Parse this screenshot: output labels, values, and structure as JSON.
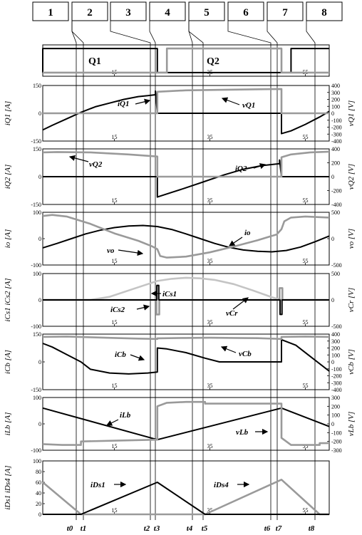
{
  "colors": {
    "dark": "#000000",
    "gray": "#9a9a9a",
    "light": "#c4c4c4"
  },
  "intervals": [
    "1",
    "2",
    "3",
    "4",
    "5",
    "6",
    "7",
    "8"
  ],
  "time_markers": [
    "t0",
    "t1",
    "t2",
    "t3",
    "t4",
    "t5",
    "t6",
    "t7",
    "t8"
  ],
  "chart_data": [
    {
      "type": "line",
      "id": "gate",
      "labels": [
        "Q1",
        "Q2"
      ],
      "x_ticks": [
        "15",
        "35",
        "55"
      ],
      "series": [
        {
          "name": "Q1",
          "color": "dark",
          "x": [
            0,
            0,
            24,
            24,
            31,
            31,
            52,
            52,
            60
          ],
          "y": [
            0,
            1,
            1,
            0,
            0,
            0,
            0,
            1,
            1
          ]
        },
        {
          "name": "Q2",
          "color": "gray",
          "x": [
            0,
            26,
            26,
            50,
            50,
            60
          ],
          "y": [
            0,
            0,
            1,
            1,
            0,
            0
          ]
        }
      ]
    },
    {
      "type": "line",
      "id": "iQ1",
      "ylabel_left": "iQ1 [A]",
      "ylabel_right": "vQ1 [V]",
      "left_ticks": [
        "150",
        "0",
        "-150"
      ],
      "right_ticks": [
        "400",
        "300",
        "200",
        "100",
        "0",
        "-100",
        "-200",
        "-300",
        "-400"
      ],
      "x_ticks": [
        "15",
        "35",
        "55"
      ],
      "annotations": [
        "iQ1",
        "vQ1"
      ],
      "series": [
        {
          "name": "iQ1",
          "color": "dark",
          "x": [
            0,
            2,
            5,
            8,
            11,
            14,
            17,
            20,
            22,
            23.6,
            23.6,
            24,
            24,
            50,
            50,
            52,
            55,
            58,
            60
          ],
          "y": [
            -90,
            -65,
            -30,
            5,
            35,
            55,
            75,
            90,
            95,
            100,
            120,
            0,
            0,
            0,
            -110,
            -95,
            -60,
            -20,
            10
          ]
        },
        {
          "name": "vQ1",
          "color": "gray",
          "x": [
            0,
            24,
            24,
            30,
            40,
            50,
            50,
            60
          ],
          "y": [
            0,
            0,
            310,
            330,
            340,
            350,
            0,
            0
          ]
        }
      ]
    },
    {
      "type": "line",
      "id": "iQ2",
      "ylabel_left": "iQ2 [A]",
      "ylabel_right": "vQ2 [V]",
      "left_ticks": [
        "150",
        "0",
        "-150"
      ],
      "right_ticks": [
        "400",
        "200",
        "0",
        "-200",
        "-400"
      ],
      "x_ticks": [
        "15",
        "35",
        "55"
      ],
      "annotations": [
        "vQ2",
        "iQ2"
      ],
      "series": [
        {
          "name": "iQ2",
          "color": "dark",
          "x": [
            0,
            24,
            24,
            27,
            30,
            34,
            38,
            42,
            46,
            49.6,
            49.6,
            50,
            50,
            60
          ],
          "y": [
            0,
            0,
            -110,
            -85,
            -60,
            -25,
            10,
            40,
            60,
            70,
            90,
            0,
            0,
            0
          ]
        },
        {
          "name": "vQ2",
          "color": "gray",
          "x": [
            0,
            3,
            10,
            18,
            24,
            24,
            50,
            50,
            52,
            56,
            60
          ],
          "y": [
            350,
            355,
            350,
            320,
            290,
            0,
            0,
            280,
            320,
            350,
            360
          ]
        }
      ]
    },
    {
      "type": "line",
      "id": "io",
      "ylabel_left": "io [A]",
      "ylabel_right": "vo [V]",
      "left_ticks": [
        "100",
        "0",
        "-100"
      ],
      "right_ticks": [
        "500",
        "0",
        "-500"
      ],
      "x_ticks": [
        "15",
        "35",
        "55"
      ],
      "annotations": [
        "io",
        "vo"
      ],
      "series": [
        {
          "name": "io",
          "color": "dark",
          "x": [
            0,
            3,
            6,
            9,
            12,
            15,
            18,
            21,
            24,
            27,
            30,
            33,
            36,
            39,
            42,
            45,
            48,
            51,
            54,
            57,
            60
          ],
          "y": [
            -35,
            -18,
            0,
            18,
            32,
            42,
            48,
            50,
            46,
            35,
            18,
            0,
            -18,
            -33,
            -43,
            -48,
            -50,
            -45,
            -32,
            -12,
            10
          ]
        },
        {
          "name": "vo",
          "color": "gray",
          "x": [
            0,
            2,
            5,
            10,
            15,
            20,
            23,
            24,
            24.6,
            26,
            30,
            35,
            40,
            45,
            49,
            50,
            50.6,
            52,
            55,
            60
          ],
          "y": [
            430,
            450,
            420,
            280,
            100,
            -40,
            -150,
            -200,
            -330,
            -360,
            -340,
            -260,
            -150,
            -30,
            80,
            180,
            330,
            400,
            420,
            400
          ]
        }
      ]
    },
    {
      "type": "line",
      "id": "iCs",
      "ylabel_left": "iCs1 iCs2 [A]",
      "ylabel_right": "vCr [V]",
      "left_ticks": [
        "100",
        "0",
        "-100"
      ],
      "right_ticks": [
        "500",
        "0",
        "-500"
      ],
      "x_ticks": [
        "15",
        "35",
        "55"
      ],
      "annotations": [
        "iCs1",
        "iCs2",
        "vCr"
      ],
      "series": [
        {
          "name": "vCr",
          "color": "light",
          "x": [
            0,
            5,
            10,
            14,
            18,
            22,
            24,
            27,
            30,
            33,
            36,
            40,
            44,
            48,
            50,
            55,
            60
          ],
          "y": [
            0,
            0,
            0,
            60,
            180,
            300,
            360,
            400,
            420,
            410,
            380,
            300,
            180,
            50,
            0,
            0,
            0
          ]
        },
        {
          "name": "iCs2",
          "color": "gray",
          "x": [
            0,
            23.8,
            23.8,
            24.4,
            24.4,
            49.6,
            49.6,
            50.2,
            50.2,
            60
          ],
          "y": [
            0,
            0,
            -55,
            -55,
            0,
            0,
            45,
            45,
            0,
            0
          ]
        },
        {
          "name": "iCs1",
          "color": "dark",
          "x": [
            0,
            23.9,
            23.9,
            24.3,
            24.3,
            49.7,
            49.7,
            50.1,
            50.1,
            60
          ],
          "y": [
            0,
            0,
            55,
            55,
            0,
            0,
            -55,
            -55,
            0,
            0
          ]
        }
      ]
    },
    {
      "type": "line",
      "id": "iCb",
      "ylabel_left": "iCb [A]",
      "ylabel_right": "vCb [V]",
      "left_ticks": [
        "150",
        "0",
        "-150"
      ],
      "right_ticks": [
        "400",
        "300",
        "200",
        "100",
        "0",
        "-100",
        "-200",
        "-300",
        "-400"
      ],
      "x_ticks": [
        "15",
        "35",
        "55"
      ],
      "annotations": [
        "iCb",
        "vCb"
      ],
      "series": [
        {
          "name": "iCb",
          "color": "dark",
          "x": [
            0,
            2,
            5,
            8,
            10,
            14,
            18,
            22,
            24,
            24,
            26,
            30,
            34,
            37,
            40,
            45,
            50,
            50,
            53,
            56,
            60
          ],
          "y": [
            100,
            80,
            40,
            0,
            -40,
            -60,
            -65,
            -60,
            -55,
            75,
            70,
            50,
            20,
            0,
            0,
            0,
            0,
            120,
            90,
            30,
            -50
          ]
        },
        {
          "name": "vCb",
          "color": "gray",
          "x": [
            0,
            5,
            10,
            15,
            20,
            24,
            24,
            30,
            35,
            40,
            45,
            50,
            50,
            55,
            60
          ],
          "y": [
            360,
            365,
            355,
            345,
            335,
            330,
            340,
            345,
            348,
            345,
            342,
            330,
            360,
            365,
            360
          ]
        }
      ]
    },
    {
      "type": "line",
      "id": "iLb",
      "ylabel_left": "iLb [A]",
      "ylabel_right": "vLb [V]",
      "left_ticks": [
        "100",
        "0",
        "-100"
      ],
      "right_ticks": [
        "300",
        "200",
        "100",
        "0",
        "-100",
        "-200",
        "-300"
      ],
      "x_ticks": [
        "15",
        "35",
        "55"
      ],
      "annotations": [
        "iLb",
        "vLb"
      ],
      "series": [
        {
          "name": "iLb",
          "color": "dark",
          "x": [
            0,
            24,
            50,
            60
          ],
          "y": [
            60,
            -60,
            60,
            -10
          ]
        },
        {
          "name": "vLb",
          "color": "gray",
          "x": [
            0,
            4,
            8,
            8,
            16,
            24,
            24,
            26,
            30,
            34,
            34,
            42,
            50,
            50,
            52,
            58,
            58,
            60
          ],
          "y": [
            -230,
            -240,
            -240,
            -200,
            -190,
            -180,
            200,
            240,
            250,
            250,
            230,
            230,
            230,
            -160,
            -240,
            -240,
            -220,
            -220
          ]
        }
      ]
    },
    {
      "type": "line",
      "id": "iDs",
      "ylabel_left": "iDs1 iDs4 [A]",
      "left_ticks": [
        "100",
        "80",
        "60",
        "40",
        "20",
        "0"
      ],
      "x_ticks": [
        "15",
        "35",
        "55"
      ],
      "annotations": [
        "iDs1",
        "iDs4"
      ],
      "series": [
        {
          "name": "iDs4",
          "color": "gray",
          "x": [
            0,
            8,
            8,
            34,
            50,
            58,
            60
          ],
          "y": [
            60,
            0,
            0,
            0,
            65,
            0,
            0
          ]
        },
        {
          "name": "iDs1",
          "color": "dark",
          "x": [
            0,
            8,
            24,
            34,
            60
          ],
          "y": [
            0,
            0,
            60,
            0,
            0
          ]
        }
      ]
    }
  ]
}
